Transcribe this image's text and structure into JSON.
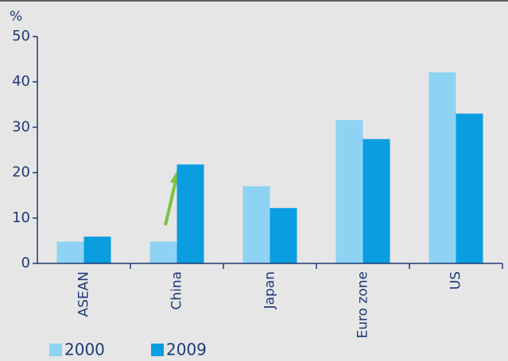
{
  "chart_data": {
    "type": "bar",
    "y_label": "%",
    "categories": [
      "ASEAN",
      "China",
      "Japan",
      "Euro zone",
      "US"
    ],
    "series": [
      {
        "name": "2000",
        "color": "#8ed3f3",
        "values": [
          4.8,
          4.8,
          17,
          31.6,
          42.1
        ]
      },
      {
        "name": "2009",
        "color": "#0a9de0",
        "values": [
          5.9,
          21.8,
          12.2,
          27.4,
          33
        ]
      }
    ],
    "ylim": [
      0,
      50
    ],
    "yticks": [
      0,
      10,
      20,
      30,
      40,
      50
    ]
  }
}
